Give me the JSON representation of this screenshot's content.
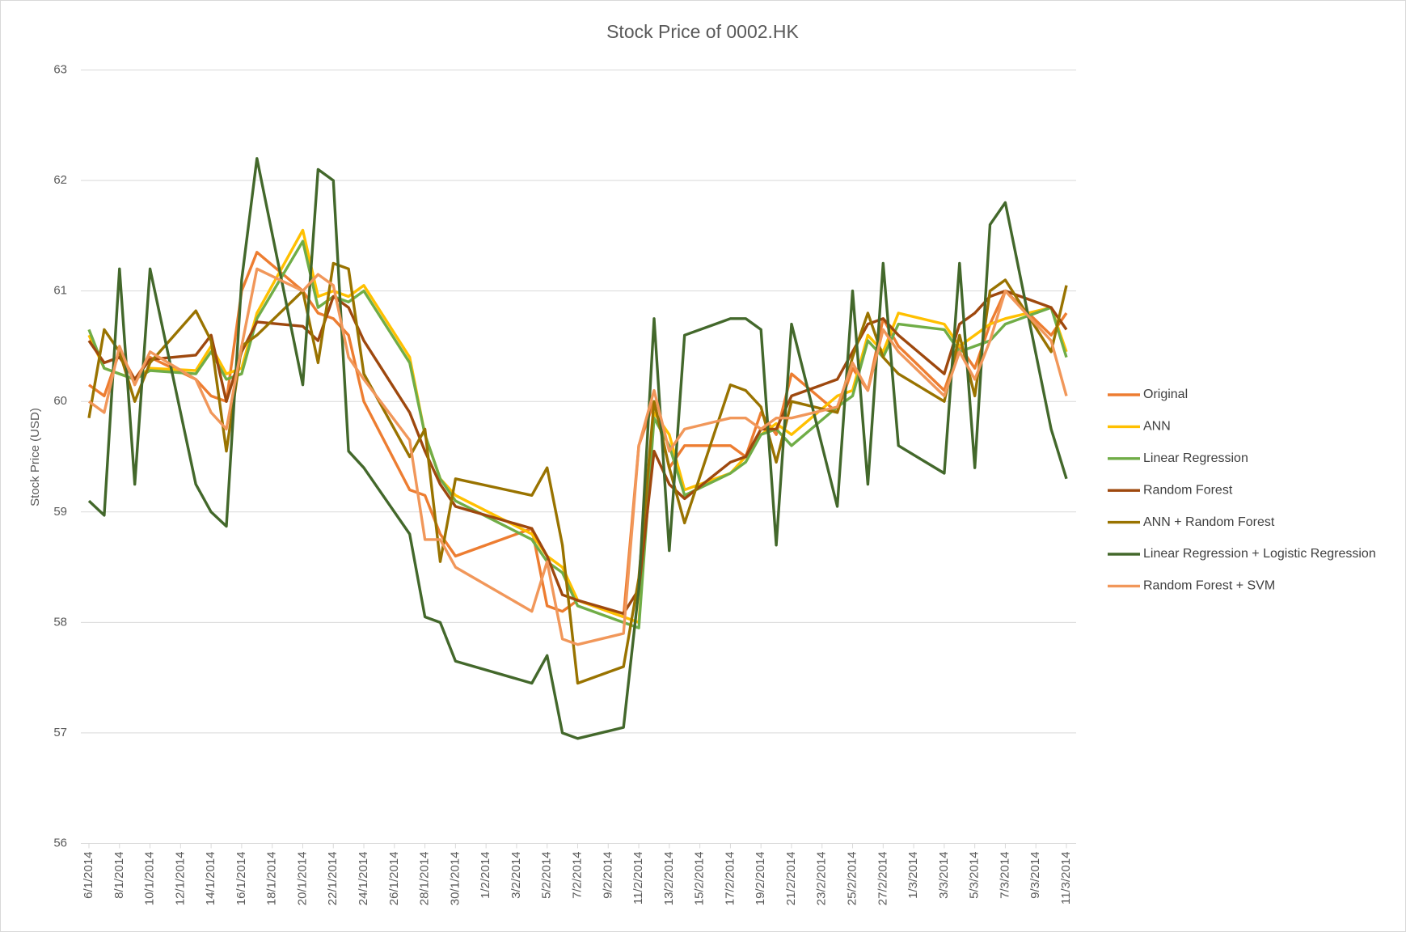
{
  "chart_data": {
    "type": "line",
    "title": "Stock Price of 0002.HK",
    "y_label": "Stock Price (USD)",
    "x": [
      "6/1/2014",
      "7/1/2014",
      "8/1/2014",
      "9/1/2014",
      "10/1/2014",
      "13/1/2014",
      "14/1/2014",
      "15/1/2014",
      "16/1/2014",
      "17/1/2014",
      "20/1/2014",
      "21/1/2014",
      "22/1/2014",
      "23/1/2014",
      "24/1/2014",
      "27/1/2014",
      "28/1/2014",
      "29/1/2014",
      "30/1/2014",
      "4/2/2014",
      "5/2/2014",
      "6/2/2014",
      "7/2/2014",
      "10/2/2014",
      "11/2/2014",
      "12/2/2014",
      "13/2/2014",
      "14/2/2014",
      "17/2/2014",
      "18/2/2014",
      "19/2/2014",
      "20/2/2014",
      "21/2/2014",
      "24/2/2014",
      "25/2/2014",
      "26/2/2014",
      "27/2/2014",
      "28/2/2014",
      "3/3/2014",
      "4/3/2014",
      "5/3/2014",
      "6/3/2014",
      "7/3/2014",
      "10/3/2014",
      "11/3/2014"
    ],
    "xticks": [
      "6/1/2014",
      "8/1/2014",
      "10/1/2014",
      "12/1/2014",
      "14/1/2014",
      "16/1/2014",
      "18/1/2014",
      "20/1/2014",
      "22/1/2014",
      "24/1/2014",
      "26/1/2014",
      "28/1/2014",
      "30/1/2014",
      "1/2/2014",
      "3/2/2014",
      "5/2/2014",
      "7/2/2014",
      "9/2/2014",
      "11/2/2014",
      "13/2/2014",
      "15/2/2014",
      "17/2/2014",
      "19/2/2014",
      "21/2/2014",
      "23/2/2014",
      "25/2/2014",
      "27/2/2014",
      "1/3/2014",
      "3/3/2014",
      "5/3/2014",
      "7/3/2014",
      "9/3/2014",
      "11/3/2014"
    ],
    "ylim": [
      56,
      63
    ],
    "yticks": [
      56,
      57,
      58,
      59,
      60,
      61,
      62,
      63
    ],
    "grid": true,
    "legend": "right",
    "series": [
      {
        "name": "Original",
        "color": "#ED7D31",
        "values": [
          60.15,
          60.05,
          60.45,
          60.2,
          60.4,
          60.2,
          60.05,
          60.0,
          61.0,
          61.35,
          61.0,
          60.8,
          60.75,
          60.6,
          60.0,
          59.2,
          59.15,
          58.8,
          58.6,
          58.85,
          58.15,
          58.1,
          58.2,
          58.05,
          59.6,
          60.0,
          59.4,
          59.6,
          59.6,
          59.5,
          59.9,
          59.7,
          60.25,
          59.9,
          60.3,
          60.1,
          60.75,
          60.5,
          60.1,
          60.5,
          60.3,
          60.7,
          61.0,
          60.6,
          60.8
        ]
      },
      {
        "name": "ANN",
        "color": "#FFC000",
        "values": [
          60.6,
          60.3,
          60.25,
          60.2,
          60.3,
          60.28,
          60.5,
          60.25,
          60.3,
          60.8,
          61.55,
          60.95,
          61.0,
          60.95,
          61.05,
          60.4,
          59.7,
          59.3,
          59.15,
          58.8,
          58.6,
          58.5,
          58.2,
          58.05,
          58.0,
          59.9,
          59.7,
          59.2,
          59.35,
          59.5,
          59.7,
          59.8,
          59.7,
          60.05,
          60.1,
          60.6,
          60.45,
          60.8,
          60.7,
          60.5,
          60.6,
          60.7,
          60.75,
          60.85,
          60.45
        ]
      },
      {
        "name": "Linear Regression",
        "color": "#70AD47",
        "values": [
          60.65,
          60.3,
          60.25,
          60.2,
          60.28,
          60.25,
          60.45,
          60.2,
          60.25,
          60.75,
          61.45,
          60.85,
          60.95,
          60.9,
          61.0,
          60.35,
          59.7,
          59.3,
          59.1,
          58.75,
          58.55,
          58.45,
          58.15,
          58.0,
          57.95,
          59.85,
          59.6,
          59.15,
          59.35,
          59.45,
          59.7,
          59.75,
          59.6,
          59.95,
          60.05,
          60.55,
          60.4,
          60.7,
          60.65,
          60.45,
          60.5,
          60.55,
          60.7,
          60.85,
          60.4
        ]
      },
      {
        "name": "Random Forest",
        "color": "#9E480E",
        "values": [
          60.55,
          60.35,
          60.4,
          60.2,
          60.38,
          60.42,
          60.6,
          60.0,
          60.45,
          60.72,
          60.68,
          60.55,
          60.95,
          60.85,
          60.55,
          59.9,
          59.55,
          59.25,
          59.05,
          58.85,
          58.6,
          58.25,
          58.2,
          58.08,
          58.3,
          59.55,
          59.25,
          59.12,
          59.45,
          59.5,
          59.75,
          59.75,
          60.05,
          60.2,
          60.45,
          60.7,
          60.75,
          60.6,
          60.25,
          60.7,
          60.8,
          60.95,
          61.0,
          60.85,
          60.65
        ]
      },
      {
        "name": "ANN + Random Forest",
        "color": "#997300",
        "values": [
          59.85,
          60.65,
          60.45,
          60.0,
          60.35,
          60.82,
          60.55,
          59.55,
          60.5,
          60.6,
          61.0,
          60.35,
          61.25,
          61.2,
          60.25,
          59.5,
          59.75,
          58.55,
          59.3,
          59.15,
          59.4,
          58.7,
          57.45,
          57.6,
          58.4,
          60.0,
          59.4,
          58.9,
          60.15,
          60.1,
          59.95,
          59.45,
          60.0,
          59.9,
          60.4,
          60.8,
          60.4,
          60.25,
          60.0,
          60.6,
          60.05,
          61.0,
          61.1,
          60.45,
          61.05
        ]
      },
      {
        "name": "Linear Regression + Logistic Regression",
        "color": "#43682B",
        "values": [
          59.1,
          58.97,
          61.2,
          59.25,
          61.2,
          59.25,
          59.0,
          58.87,
          61.1,
          62.2,
          60.15,
          62.1,
          62.0,
          59.55,
          59.4,
          58.8,
          58.05,
          58.0,
          57.65,
          57.45,
          57.7,
          57.0,
          56.95,
          57.05,
          58.3,
          60.75,
          58.65,
          60.6,
          60.75,
          60.75,
          60.65,
          58.7,
          60.7,
          59.05,
          61.0,
          59.25,
          61.25,
          59.6,
          59.35,
          61.25,
          59.4,
          61.6,
          61.8,
          59.75,
          59.3
        ]
      },
      {
        "name": "Random Forest + SVM",
        "color": "#F1975A",
        "values": [
          60.0,
          59.9,
          60.5,
          60.15,
          60.45,
          60.2,
          59.9,
          59.75,
          60.5,
          61.2,
          61.0,
          61.15,
          61.05,
          60.4,
          60.2,
          59.65,
          58.75,
          58.75,
          58.5,
          58.1,
          58.55,
          57.85,
          57.8,
          57.9,
          59.6,
          60.1,
          59.55,
          59.75,
          59.85,
          59.85,
          59.75,
          59.85,
          59.85,
          59.95,
          60.35,
          60.1,
          60.65,
          60.45,
          60.05,
          60.45,
          60.2,
          60.55,
          61.0,
          60.55,
          60.05
        ]
      }
    ]
  }
}
